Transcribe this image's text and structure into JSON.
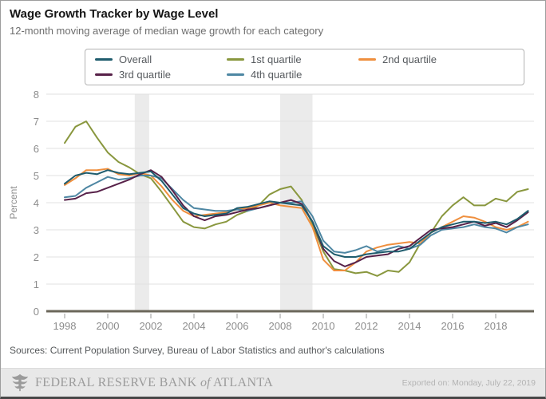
{
  "header": {
    "title": "Wage Growth Tracker by Wage Level",
    "subtitle": "12-month moving average of median wage growth for each category"
  },
  "sources": "Sources: Current Population Survey, Bureau of Labor Statistics and author's calculations",
  "footer": {
    "bank_part1": "Federal Reserve Bank",
    "bank_of": "of",
    "bank_part2": "Atlanta",
    "exported": "Exported on: Monday, July 22, 2019"
  },
  "chart_data": {
    "type": "line",
    "title": "Wage Growth Tracker by Wage Level",
    "subtitle": "12-month moving average of median wage growth for each category",
    "xlabel": "",
    "ylabel": "Percent",
    "ylim": [
      0,
      8
    ],
    "yticks": [
      0,
      1,
      2,
      3,
      4,
      5,
      6,
      7,
      8
    ],
    "xticks": [
      1998,
      2000,
      2002,
      2004,
      2006,
      2008,
      2010,
      2012,
      2014,
      2016,
      2018
    ],
    "grid": "horizontal",
    "legend_position": "top",
    "band_color": "#ebebeb",
    "grid_color": "#e0e0e0",
    "axis_color": "#6b675a",
    "tick_label_color": "#8c8c8c",
    "recession_bands": [
      [
        2001.25,
        2001.92
      ],
      [
        2008.0,
        2009.5
      ]
    ],
    "draw_order": [
      1,
      2,
      4,
      3,
      0
    ],
    "x": [
      1998.0,
      1998.5,
      1999.0,
      1999.5,
      2000.0,
      2000.5,
      2001.0,
      2001.5,
      2002.0,
      2002.5,
      2003.0,
      2003.5,
      2004.0,
      2004.5,
      2005.0,
      2005.5,
      2006.0,
      2006.5,
      2007.0,
      2007.5,
      2008.0,
      2008.5,
      2009.0,
      2009.5,
      2010.0,
      2010.5,
      2011.0,
      2011.5,
      2012.0,
      2012.5,
      2013.0,
      2013.5,
      2014.0,
      2014.5,
      2015.0,
      2015.5,
      2016.0,
      2016.5,
      2017.0,
      2017.5,
      2018.0,
      2018.5,
      2019.0,
      2019.5
    ],
    "series": [
      {
        "name": "Overall",
        "color": "#1f5c6d",
        "values": [
          4.7,
          5.0,
          5.1,
          5.05,
          5.2,
          5.1,
          5.05,
          5.1,
          5.15,
          4.8,
          4.3,
          3.8,
          3.6,
          3.5,
          3.55,
          3.6,
          3.8,
          3.85,
          3.95,
          4.05,
          4.0,
          3.95,
          3.9,
          3.3,
          2.4,
          2.1,
          2.0,
          2.0,
          2.1,
          2.15,
          2.2,
          2.2,
          2.3,
          2.6,
          2.9,
          3.1,
          3.2,
          3.3,
          3.3,
          3.25,
          3.3,
          3.2,
          3.4,
          3.7
        ]
      },
      {
        "name": "1st quartile",
        "color": "#89973e",
        "values": [
          6.2,
          6.8,
          7.0,
          6.4,
          5.85,
          5.5,
          5.3,
          5.05,
          4.9,
          4.4,
          3.85,
          3.3,
          3.1,
          3.05,
          3.2,
          3.3,
          3.55,
          3.7,
          3.9,
          4.3,
          4.5,
          4.6,
          4.1,
          3.2,
          2.2,
          1.55,
          1.5,
          1.4,
          1.45,
          1.3,
          1.5,
          1.45,
          1.8,
          2.5,
          2.9,
          3.5,
          3.9,
          4.2,
          3.9,
          3.9,
          4.15,
          4.05,
          4.4,
          4.5
        ]
      },
      {
        "name": "2nd quartile",
        "color": "#ef8f3e",
        "values": [
          4.65,
          4.9,
          5.2,
          5.2,
          5.25,
          5.05,
          5.0,
          5.1,
          5.0,
          4.6,
          4.1,
          3.7,
          3.5,
          3.55,
          3.6,
          3.65,
          3.75,
          3.8,
          3.9,
          4.0,
          3.9,
          3.85,
          3.8,
          3.1,
          1.9,
          1.5,
          1.5,
          1.8,
          2.2,
          2.35,
          2.45,
          2.5,
          2.55,
          2.5,
          2.9,
          3.1,
          3.3,
          3.5,
          3.45,
          3.3,
          3.1,
          3.0,
          3.1,
          3.3
        ]
      },
      {
        "name": "3rd quartile",
        "color": "#572149",
        "values": [
          4.1,
          4.15,
          4.35,
          4.4,
          4.55,
          4.7,
          4.85,
          5.05,
          5.2,
          4.95,
          4.45,
          3.9,
          3.5,
          3.35,
          3.5,
          3.55,
          3.65,
          3.75,
          3.8,
          3.9,
          4.0,
          4.1,
          3.95,
          3.3,
          2.3,
          1.85,
          1.65,
          1.8,
          2.0,
          2.05,
          2.1,
          2.3,
          2.4,
          2.7,
          3.0,
          3.05,
          3.1,
          3.2,
          3.3,
          3.15,
          3.25,
          3.1,
          3.35,
          3.65
        ]
      },
      {
        "name": "4th quartile",
        "color": "#4e87a3",
        "values": [
          4.2,
          4.25,
          4.55,
          4.75,
          4.95,
          4.85,
          4.9,
          5.0,
          5.0,
          4.9,
          4.5,
          4.1,
          3.8,
          3.75,
          3.7,
          3.7,
          3.75,
          3.7,
          3.8,
          3.9,
          4.0,
          4.0,
          4.05,
          3.5,
          2.6,
          2.2,
          2.15,
          2.25,
          2.4,
          2.2,
          2.3,
          2.4,
          2.3,
          2.45,
          2.8,
          3.0,
          3.05,
          3.1,
          3.2,
          3.1,
          3.05,
          2.9,
          3.1,
          3.2
        ]
      }
    ]
  }
}
